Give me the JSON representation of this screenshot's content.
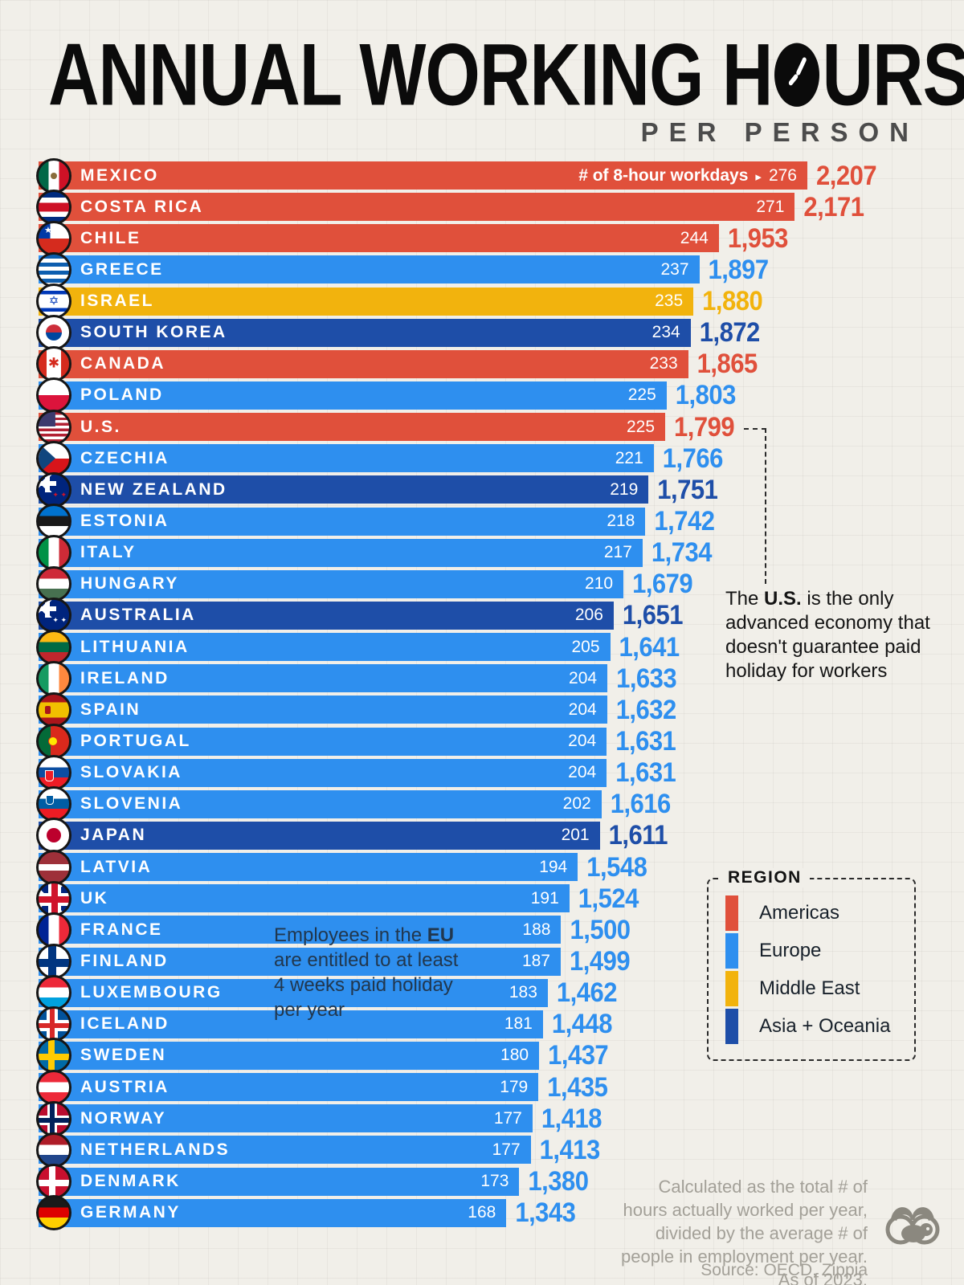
{
  "header": {
    "title": "ANNUAL WORKING HOURS",
    "title_before_clock": "ANNUAL WORKING H",
    "title_after_clock": "URS",
    "subtitle": "PER PERSON"
  },
  "chart_data": {
    "type": "bar",
    "title": "Annual working hours per person",
    "xlabel": "hours actually worked per year",
    "value_range": [
      0,
      2207
    ],
    "legend_position": "right",
    "workdays_header_label": "# of 8-hour workdays",
    "workdays_header_arrow": "▸",
    "rows": [
      {
        "country": "MEXICO",
        "region": "americas",
        "flag": "mexico",
        "workdays": 276,
        "hours": 2207,
        "hours_label": "2,207"
      },
      {
        "country": "COSTA RICA",
        "region": "americas",
        "flag": "costa-rica",
        "workdays": 271,
        "hours": 2171,
        "hours_label": "2,171"
      },
      {
        "country": "CHILE",
        "region": "americas",
        "flag": "chile",
        "workdays": 244,
        "hours": 1953,
        "hours_label": "1,953"
      },
      {
        "country": "GREECE",
        "region": "europe",
        "flag": "greece",
        "workdays": 237,
        "hours": 1897,
        "hours_label": "1,897"
      },
      {
        "country": "ISRAEL",
        "region": "middle_east",
        "flag": "israel",
        "workdays": 235,
        "hours": 1880,
        "hours_label": "1,880"
      },
      {
        "country": "SOUTH KOREA",
        "region": "asia_oceania",
        "flag": "south-korea",
        "workdays": 234,
        "hours": 1872,
        "hours_label": "1,872"
      },
      {
        "country": "CANADA",
        "region": "americas",
        "flag": "canada",
        "workdays": 233,
        "hours": 1865,
        "hours_label": "1,865"
      },
      {
        "country": "POLAND",
        "region": "europe",
        "flag": "poland",
        "workdays": 225,
        "hours": 1803,
        "hours_label": "1,803"
      },
      {
        "country": "U.S.",
        "region": "americas",
        "flag": "us",
        "workdays": 225,
        "hours": 1799,
        "hours_label": "1,799"
      },
      {
        "country": "CZECHIA",
        "region": "europe",
        "flag": "czechia",
        "workdays": 221,
        "hours": 1766,
        "hours_label": "1,766"
      },
      {
        "country": "NEW ZEALAND",
        "region": "asia_oceania",
        "flag": "new-zealand",
        "workdays": 219,
        "hours": 1751,
        "hours_label": "1,751"
      },
      {
        "country": "ESTONIA",
        "region": "europe",
        "flag": "estonia",
        "workdays": 218,
        "hours": 1742,
        "hours_label": "1,742"
      },
      {
        "country": "ITALY",
        "region": "europe",
        "flag": "italy",
        "workdays": 217,
        "hours": 1734,
        "hours_label": "1,734"
      },
      {
        "country": "HUNGARY",
        "region": "europe",
        "flag": "hungary",
        "workdays": 210,
        "hours": 1679,
        "hours_label": "1,679"
      },
      {
        "country": "AUSTRALIA",
        "region": "asia_oceania",
        "flag": "australia",
        "workdays": 206,
        "hours": 1651,
        "hours_label": "1,651"
      },
      {
        "country": "LITHUANIA",
        "region": "europe",
        "flag": "lithuania",
        "workdays": 205,
        "hours": 1641,
        "hours_label": "1,641"
      },
      {
        "country": "IRELAND",
        "region": "europe",
        "flag": "ireland",
        "workdays": 204,
        "hours": 1633,
        "hours_label": "1,633"
      },
      {
        "country": "SPAIN",
        "region": "europe",
        "flag": "spain",
        "workdays": 204,
        "hours": 1632,
        "hours_label": "1,632"
      },
      {
        "country": "PORTUGAL",
        "region": "europe",
        "flag": "portugal",
        "workdays": 204,
        "hours": 1631,
        "hours_label": "1,631"
      },
      {
        "country": "SLOVAKIA",
        "region": "europe",
        "flag": "slovakia",
        "workdays": 204,
        "hours": 1631,
        "hours_label": "1,631"
      },
      {
        "country": "SLOVENIA",
        "region": "europe",
        "flag": "slovenia",
        "workdays": 202,
        "hours": 1616,
        "hours_label": "1,616"
      },
      {
        "country": "JAPAN",
        "region": "asia_oceania",
        "flag": "japan",
        "workdays": 201,
        "hours": 1611,
        "hours_label": "1,611"
      },
      {
        "country": "LATVIA",
        "region": "europe",
        "flag": "latvia",
        "workdays": 194,
        "hours": 1548,
        "hours_label": "1,548"
      },
      {
        "country": "UK",
        "region": "europe",
        "flag": "uk",
        "workdays": 191,
        "hours": 1524,
        "hours_label": "1,524"
      },
      {
        "country": "FRANCE",
        "region": "europe",
        "flag": "france",
        "workdays": 188,
        "hours": 1500,
        "hours_label": "1,500"
      },
      {
        "country": "FINLAND",
        "region": "europe",
        "flag": "finland",
        "workdays": 187,
        "hours": 1499,
        "hours_label": "1,499"
      },
      {
        "country": "LUXEMBOURG",
        "region": "europe",
        "flag": "luxembourg",
        "workdays": 183,
        "hours": 1462,
        "hours_label": "1,462"
      },
      {
        "country": "ICELAND",
        "region": "europe",
        "flag": "iceland",
        "workdays": 181,
        "hours": 1448,
        "hours_label": "1,448"
      },
      {
        "country": "SWEDEN",
        "region": "europe",
        "flag": "sweden",
        "workdays": 180,
        "hours": 1437,
        "hours_label": "1,437"
      },
      {
        "country": "AUSTRIA",
        "region": "europe",
        "flag": "austria",
        "workdays": 179,
        "hours": 1435,
        "hours_label": "1,435"
      },
      {
        "country": "NORWAY",
        "region": "europe",
        "flag": "norway",
        "workdays": 177,
        "hours": 1418,
        "hours_label": "1,418"
      },
      {
        "country": "NETHERLANDS",
        "region": "europe",
        "flag": "netherlands",
        "workdays": 177,
        "hours": 1413,
        "hours_label": "1,413"
      },
      {
        "country": "DENMARK",
        "region": "europe",
        "flag": "denmark",
        "workdays": 173,
        "hours": 1380,
        "hours_label": "1,380"
      },
      {
        "country": "GERMANY",
        "region": "europe",
        "flag": "germany",
        "workdays": 168,
        "hours": 1343,
        "hours_label": "1,343"
      }
    ]
  },
  "legend": {
    "title": "REGION",
    "items": [
      {
        "key": "americas",
        "label": "Americas",
        "color": "#E0503B"
      },
      {
        "key": "europe",
        "label": "Europe",
        "color": "#2E8FEF"
      },
      {
        "key": "middle_east",
        "label": "Middle East",
        "color": "#F2B30D"
      },
      {
        "key": "asia_oceania",
        "label": "Asia + Oceania",
        "color": "#1E4EA8"
      }
    ]
  },
  "annotations": {
    "us": {
      "before": "The ",
      "bold": "U.S.",
      "after": " is the only advanced economy that doesn't guarantee paid holiday for workers"
    },
    "eu": {
      "before": "Employees in the ",
      "bold": "EU",
      "after": " are entitled to at least 4 weeks paid holiday per year"
    }
  },
  "footer": {
    "note": "Calculated as the total # of hours actually worked per year, divided by the average # of people in employment per year. As of 2023.",
    "source": "Source: OECD, Zippia"
  }
}
